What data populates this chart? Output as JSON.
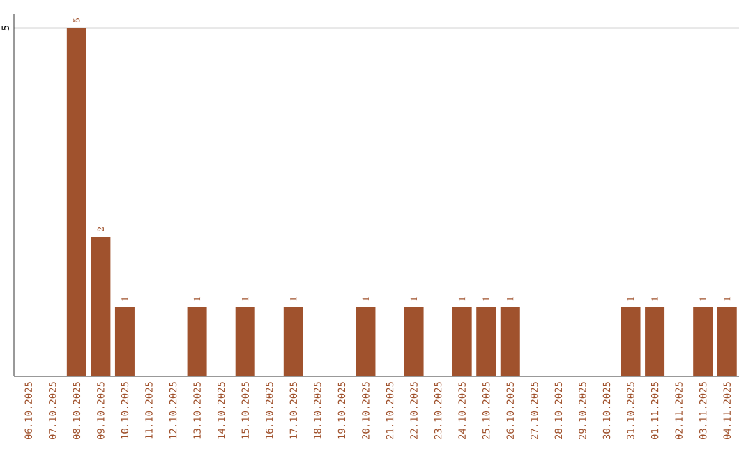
{
  "chart_data": {
    "type": "bar",
    "categories": [
      "06.10.2025",
      "07.10.2025",
      "08.10.2025",
      "09.10.2025",
      "10.10.2025",
      "11.10.2025",
      "12.10.2025",
      "13.10.2025",
      "14.10.2025",
      "15.10.2025",
      "16.10.2025",
      "17.10.2025",
      "18.10.2025",
      "19.10.2025",
      "20.10.2025",
      "21.10.2025",
      "22.10.2025",
      "23.10.2025",
      "24.10.2025",
      "25.10.2025",
      "26.10.2025",
      "27.10.2025",
      "28.10.2025",
      "29.10.2025",
      "30.10.2025",
      "31.10.2025",
      "01.11.2025",
      "02.11.2025",
      "03.11.2025",
      "04.11.2025"
    ],
    "values": [
      null,
      null,
      5,
      2,
      1,
      null,
      null,
      1,
      null,
      1,
      null,
      1,
      null,
      null,
      1,
      null,
      1,
      null,
      1,
      1,
      1,
      null,
      null,
      null,
      null,
      1,
      1,
      null,
      1,
      1
    ],
    "color": "#a0522d",
    "ylim": [
      0,
      5.2
    ],
    "yticks": [
      5
    ],
    "grid": "y",
    "data_labels": true
  }
}
